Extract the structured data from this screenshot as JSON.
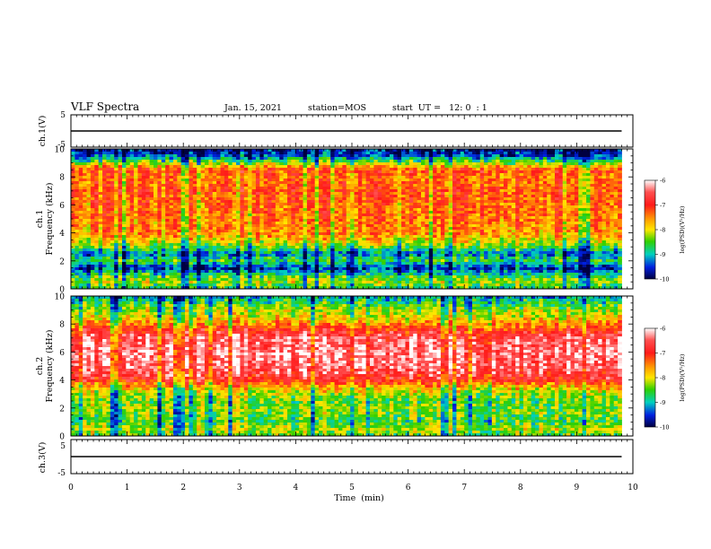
{
  "header": {
    "title": "VLF Spectra",
    "date": "Jan. 15, 2021",
    "station": "station=MOS",
    "start_ut": "start  UT =   12: 0  : 1"
  },
  "colors": {
    "strong": "#ff2222",
    "medium": "#ffe000",
    "weak": "#18d000",
    "low": "#0010c8",
    "background": "#ffffff"
  },
  "chart_data": [
    {
      "type": "line",
      "panel": "ch1-waveform",
      "ylabel": "ch.1(V)",
      "ylim": [
        -5,
        5
      ],
      "y_ticks": [
        "5",
        "-5"
      ],
      "xlim": [
        0,
        10
      ],
      "series": [
        {
          "x": [
            0,
            9.8
          ],
          "y": [
            0,
            0
          ]
        }
      ]
    },
    {
      "type": "heatmap",
      "panel": "ch1-spectrogram",
      "ylabel": "ch.1\nFrequency (kHz)",
      "ylim": [
        0,
        10
      ],
      "y_ticks": [
        "0",
        "2",
        "4",
        "6",
        "8",
        "10"
      ],
      "xlim": [
        0,
        10
      ],
      "data_extent_x": [
        0,
        9.8
      ],
      "colorbar": {
        "label": "log(PSD)(V²/Hz)",
        "range": [
          -10,
          -6
        ],
        "ticks": [
          "-6",
          "-7",
          "-8",
          "-9",
          "-10"
        ]
      },
      "profile_freq_khz": [
        0,
        0.5,
        1,
        1.5,
        2,
        2.5,
        3,
        3.5,
        4,
        5,
        6,
        7,
        8,
        8.5,
        9,
        9.5,
        10
      ],
      "profile_log_psd": [
        -8.8,
        -8.2,
        -8.7,
        -9.6,
        -8.6,
        -9.3,
        -8.4,
        -7.9,
        -7.5,
        -7.4,
        -7.3,
        -7.2,
        -7.4,
        -7.1,
        -8.3,
        -9.4,
        -9.8
      ]
    },
    {
      "type": "heatmap",
      "panel": "ch2-spectrogram",
      "ylabel": "ch.2\nFrequency (kHz)",
      "ylim": [
        0,
        10
      ],
      "y_ticks": [
        "0",
        "2",
        "4",
        "6",
        "8",
        "10"
      ],
      "xlim": [
        0,
        10
      ],
      "data_extent_x": [
        0,
        9.8
      ],
      "colorbar": {
        "label": "log(PSD)(V²/Hz)",
        "range": [
          -10,
          -6
        ],
        "ticks": [
          "-6",
          "-7",
          "-8",
          "-9",
          "-10"
        ]
      },
      "profile_freq_khz": [
        0,
        0.5,
        1,
        1.5,
        2,
        2.5,
        3,
        3.5,
        4,
        5,
        6,
        7,
        7.5,
        8,
        8.5,
        9,
        9.5,
        10
      ],
      "profile_log_psd": [
        -8.5,
        -8.1,
        -8.6,
        -8.4,
        -8.3,
        -8.4,
        -8.2,
        -7.7,
        -6.9,
        -6.4,
        -6.3,
        -6.5,
        -6.9,
        -7.5,
        -8.0,
        -8.2,
        -8.6,
        -9.1
      ]
    },
    {
      "type": "line",
      "panel": "ch3-waveform",
      "ylabel": "ch.3(V)",
      "ylim": [
        -5,
        5
      ],
      "y_ticks": [
        "5",
        "-5"
      ],
      "xlim": [
        0,
        10
      ],
      "xlabel": "Time  (min)",
      "x_ticks": [
        "0",
        "1",
        "2",
        "3",
        "4",
        "5",
        "6",
        "7",
        "8",
        "9",
        "10"
      ],
      "series": [
        {
          "x": [
            0,
            9.8
          ],
          "y": [
            0,
            0
          ]
        }
      ]
    }
  ]
}
